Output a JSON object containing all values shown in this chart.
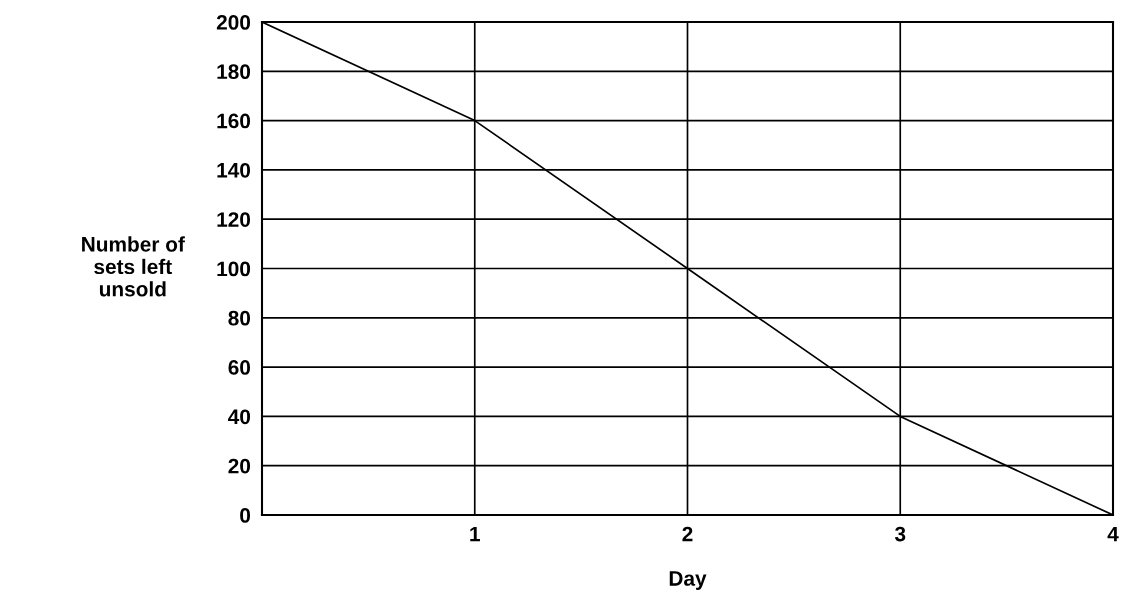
{
  "chart_data": {
    "type": "line",
    "xlabel": "Day",
    "ylabel": "Number of\nsets left\nunsold",
    "x": [
      0,
      1,
      2,
      3,
      4
    ],
    "series": [
      {
        "color": "#000000",
        "values": [
          200,
          160,
          100,
          40,
          0
        ]
      }
    ],
    "xlim": [
      0,
      4
    ],
    "xticks": [
      1,
      2,
      3,
      4
    ],
    "ylim": [
      0,
      200
    ],
    "yticks": [
      0,
      20,
      40,
      60,
      80,
      100,
      120,
      140,
      160,
      180,
      200
    ],
    "grid": true,
    "marker": "none",
    "line_style": "solid",
    "legend": false
  }
}
